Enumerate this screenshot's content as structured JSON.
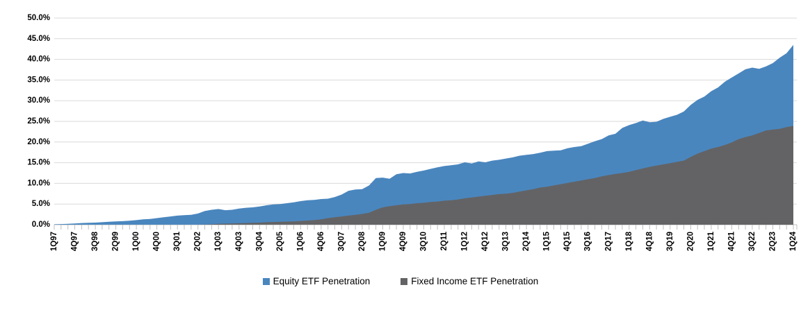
{
  "chart_data": {
    "type": "area",
    "title": "",
    "x_range": {
      "start": "1Q97",
      "end": "1Q24",
      "frequency": "quarterly"
    },
    "x_tick_step": 3,
    "x_tick_labels": [
      "1Q97",
      "4Q97",
      "3Q98",
      "2Q99",
      "1Q00",
      "4Q00",
      "3Q01",
      "2Q02",
      "1Q03",
      "4Q03",
      "3Q04",
      "2Q05",
      "1Q06",
      "4Q06",
      "3Q07",
      "2Q08",
      "1Q09",
      "4Q09",
      "3Q10",
      "2Q11",
      "1Q12",
      "4Q12",
      "3Q13",
      "2Q14",
      "1Q15",
      "4Q15",
      "3Q16",
      "2Q17",
      "1Q18",
      "4Q18",
      "3Q19",
      "2Q20",
      "1Q21",
      "4Q21",
      "3Q22",
      "2Q23",
      "1Q24"
    ],
    "ylim": [
      0,
      50
    ],
    "y_tick_step": 5,
    "y_tick_labels": [
      "0.0%",
      "5.0%",
      "10.0%",
      "15.0%",
      "20.0%",
      "25.0%",
      "30.0%",
      "35.0%",
      "40.0%",
      "45.0%",
      "50.0%"
    ],
    "grid": true,
    "legend_position": "bottom",
    "series": [
      {
        "name": "Equity ETF Penetration",
        "color": "#4A86BE",
        "values": [
          0.1,
          0.15,
          0.2,
          0.3,
          0.4,
          0.45,
          0.5,
          0.6,
          0.7,
          0.8,
          0.85,
          0.95,
          1.1,
          1.3,
          1.4,
          1.6,
          1.8,
          2.0,
          2.2,
          2.3,
          2.4,
          2.7,
          3.3,
          3.6,
          3.8,
          3.5,
          3.6,
          3.9,
          4.1,
          4.2,
          4.4,
          4.7,
          4.9,
          5.0,
          5.2,
          5.4,
          5.7,
          5.9,
          6.0,
          6.2,
          6.3,
          6.7,
          7.3,
          8.2,
          8.5,
          8.6,
          9.5,
          11.3,
          11.4,
          11.1,
          12.2,
          12.5,
          12.4,
          12.8,
          13.1,
          13.5,
          13.9,
          14.2,
          14.4,
          14.6,
          15.1,
          14.8,
          15.3,
          15.1,
          15.5,
          15.7,
          16.0,
          16.3,
          16.7,
          16.9,
          17.1,
          17.4,
          17.8,
          17.9,
          18.0,
          18.5,
          18.8,
          19.0,
          19.6,
          20.2,
          20.7,
          21.6,
          22.0,
          23.4,
          24.1,
          24.6,
          25.2,
          24.8,
          24.9,
          25.6,
          26.1,
          26.6,
          27.4,
          29.0,
          30.2,
          31.0,
          32.3,
          33.2,
          34.6,
          35.6,
          36.6,
          37.6,
          38.0,
          37.7,
          38.3,
          39.1,
          40.4,
          41.5,
          43.5
        ]
      },
      {
        "name": "Fixed Income ETF Penetration",
        "color": "#636365",
        "values": [
          0,
          0,
          0,
          0,
          0,
          0,
          0,
          0,
          0,
          0,
          0,
          0,
          0,
          0,
          0,
          0,
          0,
          0,
          0,
          0,
          0,
          0,
          0.05,
          0.1,
          0.2,
          0.25,
          0.3,
          0.35,
          0.4,
          0.45,
          0.5,
          0.6,
          0.65,
          0.7,
          0.75,
          0.8,
          0.9,
          1.0,
          1.1,
          1.3,
          1.6,
          1.8,
          2.0,
          2.2,
          2.4,
          2.6,
          2.9,
          3.6,
          4.2,
          4.5,
          4.7,
          4.9,
          5.0,
          5.2,
          5.3,
          5.5,
          5.6,
          5.8,
          5.9,
          6.1,
          6.4,
          6.6,
          6.8,
          7.0,
          7.2,
          7.4,
          7.5,
          7.7,
          8.0,
          8.3,
          8.6,
          9.0,
          9.2,
          9.5,
          9.8,
          10.1,
          10.4,
          10.7,
          11.0,
          11.3,
          11.7,
          12.0,
          12.3,
          12.5,
          12.8,
          13.2,
          13.6,
          14.0,
          14.3,
          14.6,
          14.9,
          15.2,
          15.5,
          16.4,
          17.2,
          17.8,
          18.4,
          18.8,
          19.3,
          19.9,
          20.7,
          21.2,
          21.6,
          22.2,
          22.8,
          23.0,
          23.2,
          23.6,
          23.9
        ]
      }
    ]
  },
  "legend": {
    "items": [
      {
        "label": "Equity ETF Penetration",
        "color": "#4A86BE"
      },
      {
        "label": "Fixed Income ETF Penetration",
        "color": "#636365"
      }
    ]
  },
  "colors": {
    "gridline": "#D9D9D9",
    "tick": "#BFBFBF",
    "axis_line": "#BFBFBF",
    "label": "#000000",
    "background": "#FFFFFF"
  }
}
